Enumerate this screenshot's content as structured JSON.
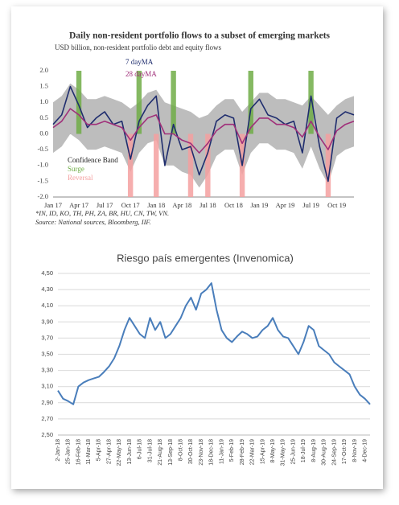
{
  "chart_data": [
    {
      "type": "line",
      "title": "Daily non-resident portfolio flows to a subset of emerging markets",
      "subtitle": "USD billion, non-resident portfolio debt and equity flows",
      "notes": [
        "*IN, ID, KO, TH, PH, ZA, BR, HU, CN, TW, VN.",
        "Source: National sources, Bloomberg, IIF."
      ],
      "categories": [
        "Jan 17",
        null,
        null,
        "Apr 17",
        null,
        null,
        "Jul 17",
        null,
        null,
        "Oct 17",
        null,
        null,
        "Jan 18",
        null,
        null,
        "Apr 18",
        null,
        null,
        "Jul 18",
        null,
        null,
        "Oct 18",
        null,
        null,
        "Jan 19",
        null,
        null,
        "Apr 19",
        null,
        null,
        "Jul 19",
        null,
        null,
        "Oct 19",
        null,
        null
      ],
      "ylim": [
        -2.0,
        2.0
      ],
      "yticks": [
        {
          "value": 2.0,
          "label": "2.0"
        },
        {
          "value": 1.5,
          "label": "1.5"
        },
        {
          "value": 1.0,
          "label": "1.0"
        },
        {
          "value": 0.5,
          "label": "0.5"
        },
        {
          "value": 0.0,
          "label": "0.0"
        },
        {
          "value": -0.5,
          "label": "-0.5"
        },
        {
          "value": -1.0,
          "label": "-1.0"
        },
        {
          "value": -1.5,
          "label": "-1.5"
        },
        {
          "value": -2.0,
          "label": "-2.0"
        }
      ],
      "grid": false,
      "series": [
        {
          "name": "Confidence Band",
          "type": "band",
          "color": "#bdbdbd",
          "upper": [
            1.0,
            1.2,
            1.6,
            1.4,
            1.1,
            1.1,
            1.2,
            1.1,
            1.0,
            0.8,
            1.0,
            1.3,
            1.4,
            1.0,
            0.9,
            0.8,
            0.7,
            0.5,
            0.6,
            0.9,
            1.1,
            1.1,
            0.7,
            1.0,
            1.3,
            1.3,
            1.1,
            1.1,
            1.0,
            0.9,
            1.2,
            0.9,
            0.6,
            0.9,
            1.1,
            1.2
          ],
          "lower": [
            -0.6,
            -0.4,
            0.0,
            -0.2,
            -0.5,
            -0.5,
            -0.4,
            -0.5,
            -0.6,
            -1.2,
            -0.6,
            -0.3,
            -0.2,
            -1.0,
            -1.0,
            -1.2,
            -1.3,
            -1.7,
            -1.3,
            -0.7,
            -0.5,
            -0.5,
            -1.3,
            -0.6,
            -0.3,
            -0.3,
            -0.5,
            -0.5,
            -0.6,
            -1.1,
            -0.4,
            -1.1,
            -1.6,
            -0.7,
            -0.5,
            -0.4
          ]
        },
        {
          "name": "Surge",
          "type": "bar",
          "color": "#70ad47",
          "values": [
            null,
            null,
            null,
            2.0,
            null,
            null,
            null,
            null,
            null,
            null,
            2.0,
            null,
            null,
            null,
            2.0,
            null,
            null,
            null,
            null,
            null,
            null,
            null,
            null,
            2.0,
            null,
            null,
            null,
            null,
            null,
            null,
            2.0,
            null,
            null,
            null,
            null,
            null
          ]
        },
        {
          "name": "Reversal",
          "type": "bar",
          "color": "#f4a0a0",
          "values": [
            null,
            null,
            null,
            null,
            null,
            null,
            null,
            null,
            null,
            -2.0,
            null,
            null,
            -2.0,
            null,
            null,
            null,
            -2.0,
            null,
            -2.0,
            null,
            null,
            null,
            -2.0,
            null,
            null,
            null,
            null,
            null,
            null,
            null,
            null,
            null,
            -2.0,
            null,
            null,
            null
          ]
        },
        {
          "name": "7 dayMA",
          "type": "line",
          "color": "#1f2d6e",
          "values": [
            0.3,
            0.6,
            1.5,
            0.9,
            0.2,
            0.5,
            0.7,
            0.3,
            0.4,
            -0.8,
            0.4,
            0.9,
            1.2,
            -1.0,
            0.3,
            -0.5,
            -0.4,
            -1.3,
            -0.6,
            0.4,
            0.6,
            0.5,
            -1.0,
            0.8,
            1.1,
            0.6,
            0.5,
            0.3,
            0.4,
            -0.6,
            1.2,
            -0.4,
            -1.5,
            0.5,
            0.7,
            0.6
          ]
        },
        {
          "name": "28 dayMA",
          "type": "line",
          "color": "#a0307a",
          "values": [
            0.2,
            0.4,
            0.8,
            0.6,
            0.3,
            0.3,
            0.4,
            0.3,
            0.2,
            -0.2,
            0.2,
            0.5,
            0.6,
            0.0,
            0.0,
            -0.2,
            -0.3,
            -0.6,
            -0.3,
            0.1,
            0.3,
            0.3,
            -0.3,
            0.2,
            0.5,
            0.5,
            0.3,
            0.3,
            0.2,
            -0.1,
            0.4,
            -0.1,
            -0.5,
            0.1,
            0.3,
            0.4
          ]
        }
      ]
    },
    {
      "type": "line",
      "title": "Riesgo país emergentes (Invenomica)",
      "categories": [
        "2-Jan-18",
        null,
        "25-Jan-18",
        null,
        "16-Feb-18",
        null,
        "11-Mar-18",
        null,
        "5-Apr-18",
        null,
        "27-Apr-18",
        null,
        "22-May-18",
        null,
        "13-Jun-18",
        null,
        "6-Jul-18",
        null,
        "31-Jul-18",
        null,
        "21-Aug-18",
        null,
        "13-Sep-18",
        null,
        "8-Oct-18",
        null,
        "30-Oct-18",
        null,
        "23-Nov-18",
        null,
        "18-Dec-18",
        null,
        "11-Jan-19",
        null,
        "5-Feb-19",
        null,
        "28-Feb-19",
        null,
        "22-Mar-19",
        null,
        "15-Apr-19",
        null,
        "8-May-19",
        null,
        "31-May-19",
        null,
        "25-Jun-19",
        null,
        "18-Jul-19",
        null,
        "8-Aug-19",
        null,
        "30-Aug-19",
        null,
        "24-Sep-19",
        null,
        "17-Oct-19",
        null,
        "8-Nov-19",
        null,
        "4-Dec-19",
        null
      ],
      "ylim": [
        2.5,
        4.5
      ],
      "yticks": [
        {
          "value": 2.5,
          "label": "2,50"
        },
        {
          "value": 2.7,
          "label": "2,70"
        },
        {
          "value": 2.9,
          "label": "2,90"
        },
        {
          "value": 3.1,
          "label": "3,10"
        },
        {
          "value": 3.3,
          "label": "3,30"
        },
        {
          "value": 3.5,
          "label": "3,50"
        },
        {
          "value": 3.7,
          "label": "3,70"
        },
        {
          "value": 3.9,
          "label": "3,90"
        },
        {
          "value": 4.1,
          "label": "4,10"
        },
        {
          "value": 4.3,
          "label": "4,30"
        },
        {
          "value": 4.5,
          "label": "4,50"
        }
      ],
      "grid": true,
      "series": [
        {
          "type": "line",
          "color": "#4a7ebb",
          "values": [
            3.05,
            2.95,
            2.92,
            2.88,
            3.1,
            3.15,
            3.18,
            3.2,
            3.22,
            3.28,
            3.35,
            3.45,
            3.6,
            3.8,
            3.95,
            3.85,
            3.75,
            3.7,
            3.95,
            3.8,
            3.9,
            3.7,
            3.75,
            3.85,
            3.95,
            4.1,
            4.2,
            4.05,
            4.25,
            4.3,
            4.38,
            4.05,
            3.8,
            3.7,
            3.65,
            3.72,
            3.78,
            3.75,
            3.7,
            3.72,
            3.8,
            3.85,
            3.95,
            3.8,
            3.72,
            3.7,
            3.6,
            3.5,
            3.65,
            3.85,
            3.8,
            3.6,
            3.55,
            3.5,
            3.4,
            3.35,
            3.3,
            3.25,
            3.1,
            3.0,
            2.95,
            2.88
          ]
        }
      ]
    }
  ]
}
